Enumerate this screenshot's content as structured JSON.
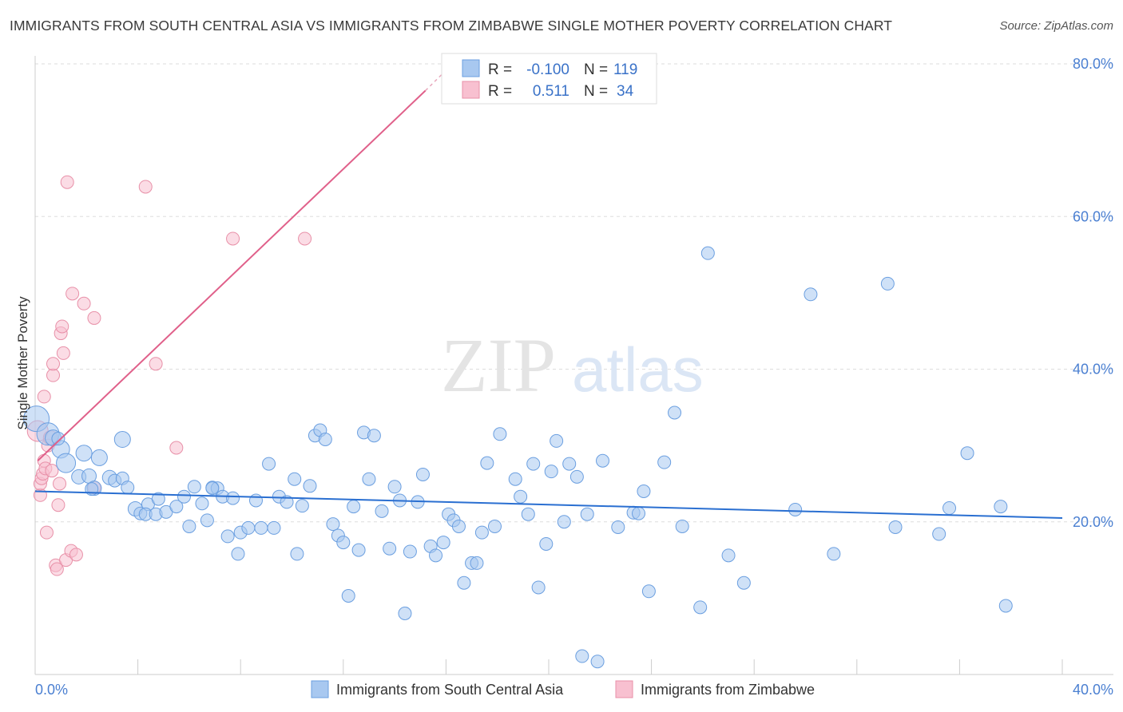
{
  "title": "IMMIGRANTS FROM SOUTH CENTRAL ASIA VS IMMIGRANTS FROM ZIMBABWE SINGLE MOTHER POVERTY CORRELATION CHART",
  "source": "Source: ZipAtlas.com",
  "watermark": {
    "zip": "ZIP",
    "atlas": "atlas"
  },
  "legend_stats": [
    {
      "r_label": "R =",
      "r_value": "-0.100",
      "n_label": "N =",
      "n_value": "119",
      "color": "#a8c8f0",
      "stroke": "#6b9fe0"
    },
    {
      "r_label": "R =",
      "r_value": "0.511",
      "n_label": "N =",
      "n_value": "34",
      "color": "#f8c0d0",
      "stroke": "#e890a8"
    }
  ],
  "chart_data": {
    "type": "scatter",
    "xlabel": "",
    "ylabel": "Single Mother Poverty",
    "xlim": [
      0,
      40
    ],
    "ylim": [
      0,
      80
    ],
    "x_tick_labels": [
      "0.0%",
      "40.0%"
    ],
    "y_ticks": [
      20,
      40,
      60,
      80
    ],
    "y_tick_labels": [
      "20.0%",
      "40.0%",
      "60.0%",
      "80.0%"
    ],
    "grid": true,
    "legend_position": "bottom",
    "series": [
      {
        "name": "Immigrants from South Central Asia",
        "color": "#a8c8f0",
        "stroke": "#6b9fe0",
        "trend": {
          "x": [
            0,
            40
          ],
          "y": [
            24.0,
            20.5
          ],
          "color": "#2a6fd1"
        },
        "points": [
          [
            0.05,
            33.5,
            16
          ],
          [
            0.5,
            31.5,
            14
          ],
          [
            0.7,
            31.0,
            10
          ],
          [
            1.0,
            29.5,
            11
          ],
          [
            1.2,
            27.7,
            12
          ],
          [
            1.9,
            29.0,
            10
          ],
          [
            2.5,
            28.4,
            10
          ],
          [
            1.7,
            25.9,
            9
          ],
          [
            2.1,
            26.0,
            9
          ],
          [
            2.9,
            25.8,
            9
          ],
          [
            3.1,
            25.4,
            8
          ],
          [
            3.4,
            25.7,
            8
          ],
          [
            2.3,
            24.4,
            9
          ],
          [
            3.6,
            24.5,
            8
          ],
          [
            3.4,
            30.8,
            10
          ],
          [
            3.9,
            21.7,
            9
          ],
          [
            4.1,
            21.1,
            8
          ],
          [
            4.4,
            22.3,
            8
          ],
          [
            4.3,
            21.0,
            8
          ],
          [
            4.8,
            23.0,
            8
          ],
          [
            4.7,
            21.0,
            8
          ],
          [
            5.1,
            21.3,
            8
          ],
          [
            5.5,
            22.0,
            8
          ],
          [
            5.8,
            23.3,
            8
          ],
          [
            6.2,
            24.6,
            8
          ],
          [
            6.5,
            22.4,
            8
          ],
          [
            6.7,
            20.2,
            8
          ],
          [
            6.0,
            19.4,
            8
          ],
          [
            6.9,
            24.5,
            8
          ],
          [
            7.1,
            24.4,
            8
          ],
          [
            7.3,
            23.3,
            8
          ],
          [
            7.7,
            23.1,
            8
          ],
          [
            7.5,
            18.1,
            8
          ],
          [
            8.0,
            18.6,
            8
          ],
          [
            8.3,
            19.2,
            8
          ],
          [
            8.6,
            22.8,
            8
          ],
          [
            8.8,
            19.2,
            8
          ],
          [
            9.1,
            27.6,
            8
          ],
          [
            9.3,
            19.2,
            8
          ],
          [
            9.5,
            23.3,
            8
          ],
          [
            9.8,
            22.6,
            8
          ],
          [
            10.1,
            25.6,
            8
          ],
          [
            10.4,
            22.1,
            8
          ],
          [
            10.7,
            24.7,
            8
          ],
          [
            7.9,
            15.8,
            8
          ],
          [
            10.2,
            15.8,
            8
          ],
          [
            10.9,
            31.3,
            8
          ],
          [
            11.1,
            32.0,
            8
          ],
          [
            11.3,
            30.8,
            8
          ],
          [
            11.6,
            19.7,
            8
          ],
          [
            11.8,
            18.2,
            8
          ],
          [
            12.0,
            17.3,
            8
          ],
          [
            12.2,
            10.3,
            8
          ],
          [
            12.4,
            22.0,
            8
          ],
          [
            12.6,
            16.3,
            8
          ],
          [
            12.8,
            31.7,
            8
          ],
          [
            13.0,
            25.6,
            8
          ],
          [
            13.2,
            31.3,
            8
          ],
          [
            13.5,
            21.4,
            8
          ],
          [
            13.8,
            16.5,
            8
          ],
          [
            14.0,
            24.6,
            8
          ],
          [
            14.2,
            22.8,
            8
          ],
          [
            14.4,
            8.0,
            8
          ],
          [
            14.6,
            16.1,
            8
          ],
          [
            14.9,
            22.6,
            8
          ],
          [
            15.1,
            26.2,
            8
          ],
          [
            15.4,
            16.8,
            8
          ],
          [
            15.6,
            15.6,
            8
          ],
          [
            15.9,
            17.3,
            8
          ],
          [
            16.1,
            21.0,
            8
          ],
          [
            16.3,
            20.2,
            8
          ],
          [
            16.5,
            19.4,
            8
          ],
          [
            16.7,
            12.0,
            8
          ],
          [
            17.0,
            14.6,
            8
          ],
          [
            17.2,
            14.6,
            8
          ],
          [
            17.4,
            18.6,
            8
          ],
          [
            17.6,
            27.7,
            8
          ],
          [
            17.9,
            19.4,
            8
          ],
          [
            18.1,
            31.5,
            8
          ],
          [
            18.7,
            25.6,
            8
          ],
          [
            18.9,
            23.3,
            8
          ],
          [
            19.2,
            21.0,
            8
          ],
          [
            19.4,
            27.6,
            8
          ],
          [
            19.6,
            11.4,
            8
          ],
          [
            19.9,
            17.1,
            8
          ],
          [
            20.1,
            26.6,
            8
          ],
          [
            20.3,
            30.6,
            8
          ],
          [
            20.6,
            20.0,
            8
          ],
          [
            20.8,
            27.6,
            8
          ],
          [
            21.1,
            25.9,
            8
          ],
          [
            21.3,
            2.4,
            8
          ],
          [
            21.5,
            21.0,
            8
          ],
          [
            21.9,
            1.7,
            8
          ],
          [
            22.1,
            28.0,
            8
          ],
          [
            22.7,
            19.3,
            8
          ],
          [
            23.3,
            21.2,
            8
          ],
          [
            23.5,
            21.1,
            8
          ],
          [
            23.7,
            24.0,
            8
          ],
          [
            23.9,
            10.9,
            8
          ],
          [
            24.5,
            27.8,
            8
          ],
          [
            24.9,
            34.3,
            8
          ],
          [
            25.2,
            19.4,
            8
          ],
          [
            25.9,
            8.8,
            8
          ],
          [
            26.2,
            55.2,
            8
          ],
          [
            27.0,
            15.6,
            8
          ],
          [
            27.6,
            12.0,
            8
          ],
          [
            29.6,
            21.6,
            8
          ],
          [
            30.2,
            49.8,
            8
          ],
          [
            31.1,
            15.8,
            8
          ],
          [
            33.2,
            51.2,
            8
          ],
          [
            33.5,
            19.3,
            8
          ],
          [
            35.2,
            18.4,
            8
          ],
          [
            35.6,
            21.8,
            8
          ],
          [
            36.3,
            29.0,
            8
          ],
          [
            37.6,
            22.0,
            8
          ],
          [
            37.8,
            9.0,
            8
          ],
          [
            2.2,
            24.3,
            8
          ],
          [
            6.9,
            24.4,
            8
          ],
          [
            0.9,
            30.9,
            8
          ]
        ]
      },
      {
        "name": "Immigrants from Zimbabwe",
        "color": "#f8c0d0",
        "stroke": "#e890a8",
        "trend": {
          "x": [
            0.1,
            15.2
          ],
          "y": [
            28.0,
            76.5
          ],
          "dash_x": [
            15.2,
            16.5
          ],
          "dash_y": [
            76.5,
            80.8
          ],
          "color": "#e0608a"
        },
        "points": [
          [
            0.1,
            31.9,
            13
          ],
          [
            0.2,
            23.5,
            8
          ],
          [
            0.2,
            25.0,
            8
          ],
          [
            0.25,
            25.7,
            8
          ],
          [
            0.3,
            26.3,
            8
          ],
          [
            0.35,
            28.0,
            8
          ],
          [
            0.35,
            36.4,
            8
          ],
          [
            0.4,
            27.0,
            8
          ],
          [
            0.45,
            18.6,
            8
          ],
          [
            0.5,
            30.0,
            8
          ],
          [
            0.6,
            31.0,
            9
          ],
          [
            0.65,
            26.7,
            8
          ],
          [
            0.7,
            39.2,
            8
          ],
          [
            0.7,
            40.7,
            8
          ],
          [
            0.8,
            14.3,
            8
          ],
          [
            0.85,
            13.8,
            8
          ],
          [
            0.9,
            22.2,
            8
          ],
          [
            0.95,
            25.0,
            8
          ],
          [
            1.0,
            44.7,
            8
          ],
          [
            1.05,
            45.6,
            8
          ],
          [
            1.1,
            42.1,
            8
          ],
          [
            1.2,
            15.0,
            8
          ],
          [
            1.25,
            64.5,
            8
          ],
          [
            1.4,
            16.2,
            8
          ],
          [
            1.45,
            49.9,
            8
          ],
          [
            1.6,
            15.7,
            8
          ],
          [
            1.9,
            48.6,
            8
          ],
          [
            2.3,
            46.7,
            8
          ],
          [
            2.3,
            24.5,
            8
          ],
          [
            4.3,
            63.9,
            8
          ],
          [
            4.7,
            40.7,
            8
          ],
          [
            5.5,
            29.7,
            8
          ],
          [
            7.7,
            57.1,
            8
          ],
          [
            10.5,
            57.1,
            8
          ]
        ]
      }
    ]
  }
}
